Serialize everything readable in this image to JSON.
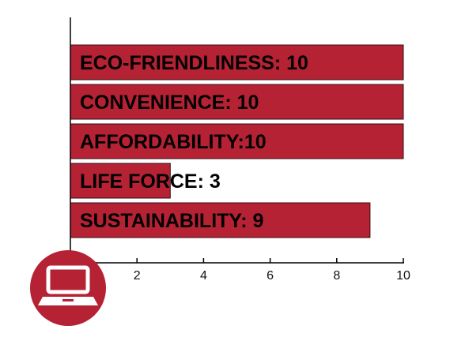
{
  "chart_data": {
    "type": "bar",
    "orientation": "horizontal",
    "categories": [
      "ECO-FRIENDLINESS",
      "CONVENIENCE",
      "AFFORDABILITY",
      "LIFE FORCE",
      "SUSTAINABILITY"
    ],
    "values": [
      10,
      10,
      10,
      3,
      9
    ],
    "labels": [
      "ECO-FRIENDLINESS: 10",
      "CONVENIENCE: 10",
      "AFFORDABILITY:10",
      "LIFE FORCE: 3",
      "SUSTAINABILITY: 9"
    ],
    "xlim": [
      0,
      10
    ],
    "xticks": [
      "2",
      "4",
      "6",
      "8",
      "10"
    ],
    "title": "",
    "xlabel": "",
    "ylabel": "",
    "grid": false,
    "bar_color": "#b52234",
    "bar_outline": "#3a0c12"
  },
  "icon": {
    "name": "laptop-icon",
    "background": "#b52234",
    "foreground": "#ffffff"
  }
}
